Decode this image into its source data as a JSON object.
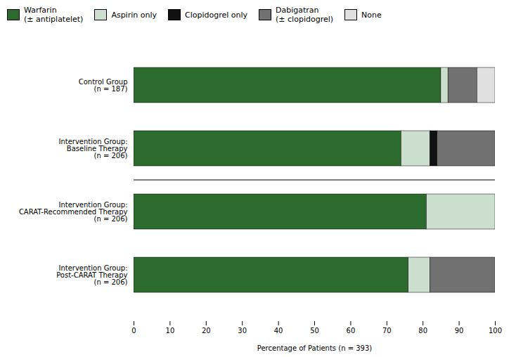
{
  "chart_data": {
    "type": "bar",
    "orientation": "horizontal",
    "stacked": true,
    "categories": [
      "Control Group\n(n = 187)",
      "Intervention Group:\nBaseline Therapy\n(n = 206)",
      "Intervention Group:\nCARAT-Recommended Therapy\n(n = 206)",
      "Intervention Group:\nPost-CARAT Therapy\n(n = 206)"
    ],
    "series": [
      {
        "name": "Warfarin\n(± antiplatelet)",
        "color": "#2d6a2d",
        "values": [
          85,
          74,
          81,
          76
        ]
      },
      {
        "name": "Aspirin only",
        "color": "#ccdece",
        "values": [
          2,
          8,
          19,
          6
        ]
      },
      {
        "name": "Clopidogrel only",
        "color": "#111111",
        "values": [
          0,
          2,
          0,
          0
        ]
      },
      {
        "name": "Dabigatran\n(± clopidogrel)",
        "color": "#717171",
        "values": [
          8,
          16,
          0,
          18
        ]
      },
      {
        "name": "None",
        "color": "#e0e0e0",
        "values": [
          5,
          0,
          0,
          0
        ]
      }
    ],
    "xlabel": "Percentage of Patients (n = 393)",
    "xlim": [
      0,
      100
    ],
    "xticks": [
      0,
      10,
      20,
      30,
      40,
      50,
      60,
      70,
      80,
      90,
      100
    ],
    "legend": "upper left"
  }
}
